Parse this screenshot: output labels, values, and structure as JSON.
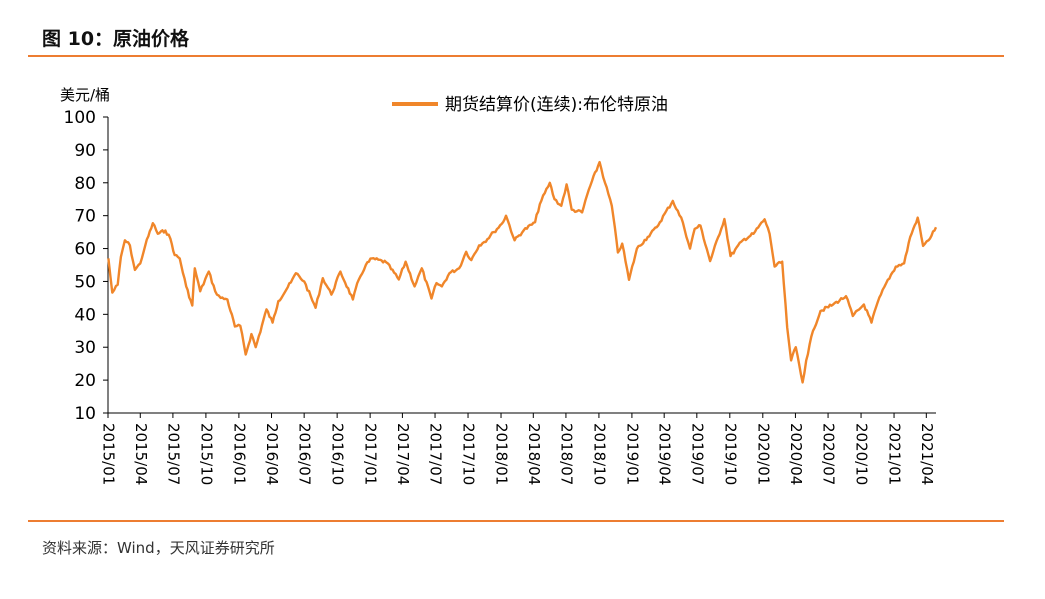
{
  "header": {
    "title": "图 10：原油价格"
  },
  "footer": {
    "source": "资料来源：Wind，天风证券研究所"
  },
  "colors": {
    "accent": "#ed7d31",
    "series": "#f0862a"
  },
  "chart_data": {
    "type": "line",
    "ylabel": "美元/桶",
    "ylim": [
      10,
      100
    ],
    "yticks": [
      10,
      20,
      30,
      40,
      50,
      60,
      70,
      80,
      90,
      100
    ],
    "xlim": [
      "2015/01/01",
      "2021/04/28"
    ],
    "xticks": [
      "2015/01",
      "2015/04",
      "2015/07",
      "2015/10",
      "2016/01",
      "2016/04",
      "2016/07",
      "2016/10",
      "2017/01",
      "2017/04",
      "2017/07",
      "2017/10",
      "2018/01",
      "2018/04",
      "2018/07",
      "2018/10",
      "2019/01",
      "2019/04",
      "2019/07",
      "2019/10",
      "2020/01",
      "2020/04",
      "2020/07",
      "2020/10",
      "2021/01",
      "2021/04"
    ],
    "legend": "top-center",
    "grid": false,
    "series": [
      {
        "name": "期货结算价(连续):布伦特原油",
        "points": [
          [
            "2015/01/02",
            57
          ],
          [
            "2015/01/13",
            46.6
          ],
          [
            "2015/01/28",
            49
          ],
          [
            "2015/02/06",
            57.5
          ],
          [
            "2015/02/17",
            62.5
          ],
          [
            "2015/03/03",
            61
          ],
          [
            "2015/03/17",
            53.5
          ],
          [
            "2015/04/01",
            55.5
          ],
          [
            "2015/04/15",
            61
          ],
          [
            "2015/05/06",
            67.7
          ],
          [
            "2015/05/20",
            64.5
          ],
          [
            "2015/06/10",
            65.5
          ],
          [
            "2015/06/24",
            63
          ],
          [
            "2015/07/06",
            58
          ],
          [
            "2015/07/20",
            57
          ],
          [
            "2015/08/07",
            48.5
          ],
          [
            "2015/08/24",
            42.7
          ],
          [
            "2015/08/31",
            54
          ],
          [
            "2015/09/15",
            47
          ],
          [
            "2015/10/09",
            53
          ],
          [
            "2015/10/27",
            47
          ],
          [
            "2015/11/11",
            45
          ],
          [
            "2015/11/30",
            44.5
          ],
          [
            "2015/12/21",
            36.3
          ],
          [
            "2016/01/05",
            36.5
          ],
          [
            "2016/01/20",
            27.8
          ],
          [
            "2016/02/05",
            34
          ],
          [
            "2016/02/17",
            30
          ],
          [
            "2016/03/18",
            41.5
          ],
          [
            "2016/04/04",
            37.5
          ],
          [
            "2016/04/20",
            44
          ],
          [
            "2016/05/25",
            49.7
          ],
          [
            "2016/06/08",
            52.5
          ],
          [
            "2016/07/01",
            50
          ],
          [
            "2016/08/02",
            42
          ],
          [
            "2016/08/22",
            51
          ],
          [
            "2016/09/15",
            46
          ],
          [
            "2016/10/10",
            53
          ],
          [
            "2016/11/14",
            44.5
          ],
          [
            "2016/11/30",
            50.5
          ],
          [
            "2016/12/20",
            55
          ],
          [
            "2017/01/06",
            57
          ],
          [
            "2017/02/15",
            55.8
          ],
          [
            "2017/03/22",
            50.6
          ],
          [
            "2017/04/10",
            56
          ],
          [
            "2017/05/05",
            48.5
          ],
          [
            "2017/05/25",
            54
          ],
          [
            "2017/06/21",
            44.8
          ],
          [
            "2017/07/05",
            49.5
          ],
          [
            "2017/07/20",
            48.5
          ],
          [
            "2017/08/10",
            52.5
          ],
          [
            "2017/09/06",
            54
          ],
          [
            "2017/09/26",
            59
          ],
          [
            "2017/10/10",
            56.5
          ],
          [
            "2017/11/01",
            61
          ],
          [
            "2017/11/15",
            62
          ],
          [
            "2017/12/12",
            65
          ],
          [
            "2018/01/03",
            67.5
          ],
          [
            "2018/01/15",
            70
          ],
          [
            "2018/02/08",
            62.5
          ],
          [
            "2018/03/05",
            65.5
          ],
          [
            "2018/04/06",
            68
          ],
          [
            "2018/04/19",
            73.5
          ],
          [
            "2018/05/17",
            80
          ],
          [
            "2018/05/30",
            75
          ],
          [
            "2018/06/18",
            73
          ],
          [
            "2018/07/03",
            79.5
          ],
          [
            "2018/07/17",
            71.8
          ],
          [
            "2018/08/15",
            71
          ],
          [
            "2018/09/03",
            78
          ],
          [
            "2018/10/03",
            86.3
          ],
          [
            "2018/10/18",
            80
          ],
          [
            "2018/11/06",
            73
          ],
          [
            "2018/11/23",
            58.8
          ],
          [
            "2018/12/05",
            61.5
          ],
          [
            "2018/12/24",
            50.5
          ],
          [
            "2019/01/15",
            60
          ],
          [
            "2019/02/14",
            63.5
          ],
          [
            "2019/03/11",
            66.5
          ],
          [
            "2019/04/25",
            74.5
          ],
          [
            "2019/05/23",
            68
          ],
          [
            "2019/06/12",
            60
          ],
          [
            "2019/06/25",
            66
          ],
          [
            "2019/07/11",
            67
          ],
          [
            "2019/08/07",
            56.2
          ],
          [
            "2019/09/16",
            69
          ],
          [
            "2019/10/03",
            57.7
          ],
          [
            "2019/11/06",
            62.5
          ],
          [
            "2019/12/06",
            64.5
          ],
          [
            "2020/01/06",
            68.9
          ],
          [
            "2020/01/20",
            64.5
          ],
          [
            "2020/02/03",
            54.5
          ],
          [
            "2020/02/24",
            56
          ],
          [
            "2020/03/09",
            36
          ],
          [
            "2020/03/20",
            26
          ],
          [
            "2020/04/02",
            30
          ],
          [
            "2020/04/21",
            19.3
          ],
          [
            "2020/05/01",
            26
          ],
          [
            "2020/05/20",
            35
          ],
          [
            "2020/06/10",
            41
          ],
          [
            "2020/07/15",
            43
          ],
          [
            "2020/08/20",
            45.5
          ],
          [
            "2020/09/08",
            39.5
          ],
          [
            "2020/10/09",
            43
          ],
          [
            "2020/10/30",
            37.5
          ],
          [
            "2020/11/16",
            43.5
          ],
          [
            "2020/12/10",
            49.5
          ],
          [
            "2021/01/06",
            54.5
          ],
          [
            "2021/01/29",
            55.5
          ],
          [
            "2021/02/15",
            63.5
          ],
          [
            "2021/03/08",
            69.4
          ],
          [
            "2021/03/23",
            60.8
          ],
          [
            "2021/04/07",
            62.5
          ],
          [
            "2021/04/28",
            66.5
          ]
        ]
      }
    ]
  }
}
